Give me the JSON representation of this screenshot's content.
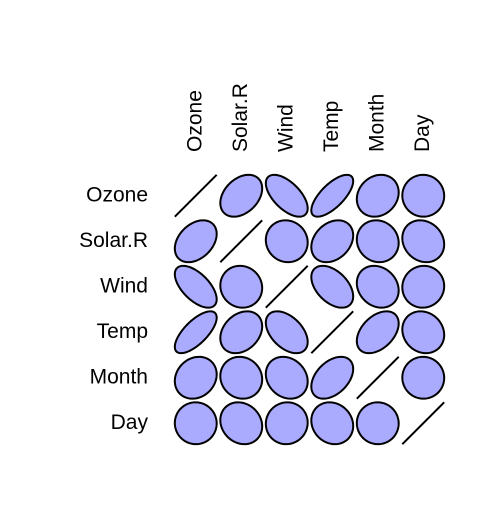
{
  "chart_data": {
    "type": "corrplot",
    "variables": [
      "Ozone",
      "Solar.R",
      "Wind",
      "Temp",
      "Month",
      "Day"
    ],
    "matrix": [
      [
        1,
        0.35,
        -0.6,
        0.7,
        0.16,
        -0.01
      ],
      [
        0.35,
        1,
        -0.06,
        0.28,
        -0.08,
        -0.15
      ],
      [
        -0.6,
        -0.06,
        1,
        -0.46,
        -0.18,
        0.03
      ],
      [
        0.7,
        0.28,
        -0.46,
        1,
        0.42,
        -0.13
      ],
      [
        0.16,
        -0.08,
        -0.18,
        0.42,
        1,
        -0.01
      ],
      [
        -0.01,
        -0.15,
        0.03,
        -0.13,
        -0.01,
        1
      ]
    ],
    "color": "#aaaaff"
  }
}
